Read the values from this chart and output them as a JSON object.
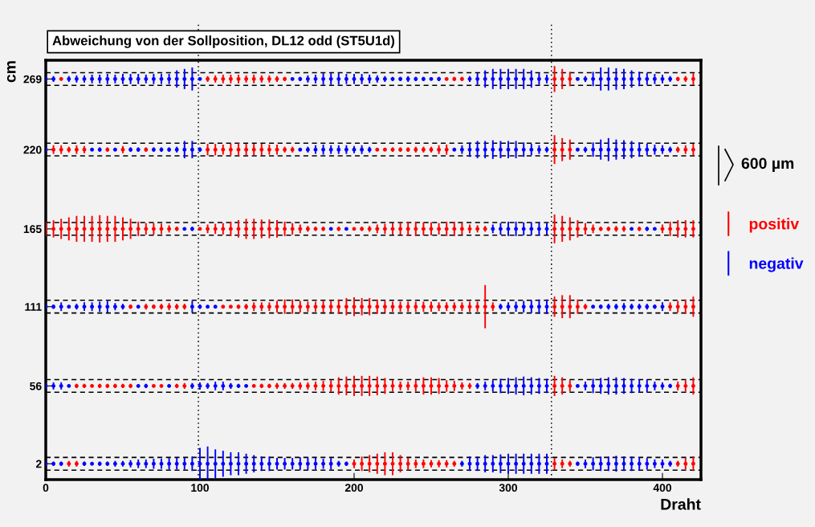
{
  "chart_data": {
    "type": "scatter",
    "title": "Abweichung von der Sollposition, DL12 odd (ST5U1d)",
    "xlabel": "Draht",
    "ylabel": "cm",
    "marker": "circle",
    "grid": false,
    "legend": "right",
    "annotations": [
      "600 µm"
    ],
    "xlim": [
      0,
      425
    ],
    "xticks": [
      0,
      100,
      200,
      300,
      400
    ],
    "ylim": [
      -9,
      282
    ],
    "yticks": [
      2,
      56,
      111,
      165,
      220,
      269
    ],
    "ref_lines": [
      {
        "axis": "x",
        "value": 99,
        "line_style": "dotted",
        "color": "#000000"
      },
      {
        "axis": "x",
        "value": 328,
        "line_style": "dotted",
        "color": "#000000"
      },
      {
        "axis": "y",
        "value": 273.4,
        "line_style": "dashed",
        "color": "#000000"
      },
      {
        "axis": "y",
        "value": 264.6,
        "line_style": "dashed",
        "color": "#000000"
      },
      {
        "axis": "y",
        "value": 224.4,
        "line_style": "dashed",
        "color": "#000000"
      },
      {
        "axis": "y",
        "value": 215.6,
        "line_style": "dashed",
        "color": "#000000"
      },
      {
        "axis": "y",
        "value": 169.4,
        "line_style": "dashed",
        "color": "#000000"
      },
      {
        "axis": "y",
        "value": 160.6,
        "line_style": "dashed",
        "color": "#000000"
      },
      {
        "axis": "y",
        "value": 115.4,
        "line_style": "dashed",
        "color": "#000000"
      },
      {
        "axis": "y",
        "value": 106.6,
        "line_style": "dashed",
        "color": "#000000"
      },
      {
        "axis": "y",
        "value": 60.4,
        "line_style": "dashed",
        "color": "#000000"
      },
      {
        "axis": "y",
        "value": 51.6,
        "line_style": "dashed",
        "color": "#000000"
      },
      {
        "axis": "y",
        "value": 6.4,
        "line_style": "dashed",
        "color": "#000000"
      },
      {
        "axis": "y",
        "value": -2.4,
        "line_style": "dashed",
        "color": "#000000"
      }
    ],
    "series": [
      {
        "name": "positiv",
        "color": "#ff0000",
        "x": [
          10,
          105,
          110,
          115,
          120,
          125,
          130,
          135,
          140,
          145,
          150,
          155,
          260,
          265,
          270,
          330,
          335,
          340,
          410,
          415,
          420
        ],
        "values": [
          269,
          269,
          269,
          269,
          269,
          269,
          269,
          269,
          269,
          269,
          269,
          269,
          269,
          269,
          269,
          269,
          269,
          269,
          269,
          269,
          269
        ],
        "errors": [
          1,
          2,
          2.5,
          3,
          3,
          3,
          2.5,
          3,
          2.5,
          2.5,
          2,
          1.5,
          1,
          1.5,
          1.5,
          9,
          7,
          5,
          1.5,
          2,
          4
        ]
      },
      {
        "name": "negativ",
        "color": "#0000ff",
        "x": [
          0,
          5,
          15,
          20,
          25,
          30,
          35,
          40,
          45,
          50,
          55,
          60,
          65,
          70,
          75,
          80,
          85,
          90,
          95,
          100,
          160,
          165,
          170,
          175,
          180,
          185,
          190,
          195,
          200,
          205,
          210,
          215,
          220,
          225,
          230,
          235,
          240,
          245,
          250,
          255,
          275,
          280,
          285,
          290,
          295,
          300,
          305,
          310,
          315,
          320,
          325,
          345,
          350,
          355,
          360,
          365,
          370,
          375,
          380,
          385,
          390,
          395,
          400,
          405
        ],
        "values": [
          269,
          269,
          269,
          269,
          269,
          269,
          269,
          269,
          269,
          269,
          269,
          269,
          269,
          269,
          269,
          269,
          269,
          269,
          269,
          269,
          269,
          269,
          269,
          269,
          269,
          269,
          269,
          269,
          269,
          269,
          269,
          269,
          269,
          269,
          269,
          269,
          269,
          269,
          269,
          269,
          269,
          269,
          269,
          269,
          269,
          269,
          269,
          269,
          269,
          269,
          269,
          269,
          269,
          269,
          269,
          269,
          269,
          269,
          269,
          269,
          269,
          269,
          269,
          269
        ],
        "errors": [
          1.5,
          2,
          2,
          2.5,
          2.5,
          3,
          3,
          3.5,
          3,
          3.5,
          3.5,
          3.5,
          3,
          3.5,
          3.5,
          3.5,
          6,
          7,
          8,
          1,
          1,
          1.5,
          2.5,
          3,
          4,
          4,
          4,
          3.5,
          3.5,
          3.5,
          3,
          2.5,
          2,
          1.5,
          1.5,
          2,
          1.5,
          1.5,
          1,
          1.5,
          2,
          4,
          6,
          7,
          7,
          7,
          7,
          7,
          6,
          4,
          3,
          1,
          2,
          5,
          8,
          8,
          7.5,
          7,
          6,
          5,
          4,
          3.5,
          3,
          2
        ]
      },
      {
        "color": "#ff0000",
        "x": [
          5,
          10,
          15,
          20,
          25,
          40,
          50,
          65,
          105,
          110,
          115,
          120,
          125,
          130,
          135,
          140,
          145,
          150,
          155,
          160,
          215,
          220,
          225,
          230,
          235,
          240,
          245,
          250,
          255,
          260,
          330,
          335,
          340,
          410,
          415,
          420
        ],
        "values": [
          220,
          220,
          220,
          220,
          220,
          220,
          220,
          220,
          220,
          220,
          220,
          220,
          220,
          220,
          220,
          220,
          220,
          220,
          220,
          220,
          220,
          220,
          220,
          220,
          220,
          220,
          220,
          220,
          220,
          220,
          220,
          220,
          220,
          220,
          220,
          220
        ],
        "errors": [
          3,
          3,
          2,
          3,
          2.5,
          1.5,
          2.5,
          1.5,
          4,
          4,
          3.5,
          4,
          4.5,
          4,
          4,
          4,
          3.5,
          3.5,
          2,
          2,
          1,
          1,
          1.5,
          1.5,
          1.5,
          2,
          2,
          2,
          3,
          3.5,
          10,
          8,
          7,
          2,
          3,
          4
        ]
      },
      {
        "color": "#0000ff",
        "x": [
          0,
          30,
          35,
          45,
          55,
          60,
          70,
          75,
          80,
          85,
          90,
          95,
          100,
          165,
          170,
          175,
          180,
          185,
          190,
          195,
          200,
          205,
          210,
          265,
          270,
          275,
          280,
          285,
          290,
          295,
          300,
          305,
          310,
          315,
          320,
          325,
          345,
          350,
          355,
          360,
          365,
          370,
          375,
          380,
          385,
          390,
          395,
          400,
          405
        ],
        "values": [
          220,
          220,
          220,
          220,
          220,
          220,
          220,
          220,
          220,
          220,
          220,
          220,
          220,
          220,
          220,
          220,
          220,
          220,
          220,
          220,
          220,
          220,
          220,
          220,
          220,
          220,
          220,
          220,
          220,
          220,
          220,
          220,
          220,
          220,
          220,
          220,
          220,
          220,
          220,
          220,
          220,
          220,
          220,
          220,
          220,
          220,
          220,
          220,
          220
        ],
        "errors": [
          1,
          1,
          1.5,
          1,
          1.5,
          1.5,
          1.5,
          1.5,
          1.5,
          2,
          6,
          6,
          1.5,
          1,
          2,
          3,
          3.5,
          3,
          3,
          3,
          2.5,
          3,
          2,
          1,
          3,
          5,
          6,
          6,
          6.5,
          6,
          6,
          6,
          5,
          4,
          3,
          2,
          1,
          2,
          5,
          7,
          8,
          7,
          6.5,
          6,
          5,
          4,
          3.5,
          3,
          2
        ]
      },
      {
        "color": "#ff0000",
        "x": [
          0,
          5,
          10,
          15,
          20,
          25,
          30,
          35,
          40,
          45,
          50,
          55,
          60,
          65,
          70,
          75,
          80,
          85,
          100,
          105,
          110,
          115,
          120,
          125,
          130,
          135,
          140,
          145,
          150,
          155,
          160,
          165,
          170,
          175,
          180,
          190,
          200,
          205,
          210,
          215,
          220,
          225,
          230,
          235,
          240,
          245,
          250,
          255,
          260,
          265,
          270,
          275,
          280,
          285,
          330,
          335,
          340,
          345,
          350,
          355,
          360,
          365,
          370,
          375,
          385,
          400,
          405,
          410,
          415,
          420
        ],
        "values": [
          165,
          165,
          165,
          165,
          165,
          165,
          165,
          165,
          165,
          165,
          165,
          165,
          165,
          165,
          165,
          165,
          165,
          165,
          165,
          165,
          165,
          165,
          165,
          165,
          165,
          165,
          165,
          165,
          165,
          165,
          165,
          165,
          165,
          165,
          165,
          165,
          165,
          165,
          165,
          165,
          165,
          165,
          165,
          165,
          165,
          165,
          165,
          165,
          165,
          165,
          165,
          165,
          165,
          165,
          165,
          165,
          165,
          165,
          165,
          165,
          165,
          165,
          165,
          165,
          165,
          165,
          165,
          165,
          165,
          165
        ],
        "errors": [
          5,
          6,
          7,
          8,
          9,
          9,
          9,
          9.5,
          9,
          9,
          8,
          7,
          5,
          4,
          4,
          3.5,
          2.5,
          1.5,
          1,
          3,
          3.5,
          4,
          5,
          6,
          7,
          7,
          6.5,
          6.5,
          6,
          5,
          4,
          3,
          2,
          1.5,
          1.5,
          1.5,
          1,
          1.5,
          2,
          3,
          3.5,
          4,
          4,
          5,
          5,
          4.5,
          4.5,
          4,
          5,
          5,
          4,
          3,
          2.5,
          2,
          10,
          9,
          8,
          6,
          4,
          3,
          1.5,
          1.5,
          2,
          2,
          1.5,
          3,
          5,
          6,
          6,
          6
        ]
      },
      {
        "color": "#0000ff",
        "x": [
          90,
          95,
          185,
          195,
          290,
          295,
          300,
          305,
          310,
          315,
          320,
          325,
          380,
          390,
          395
        ],
        "values": [
          165,
          165,
          165,
          165,
          165,
          165,
          165,
          165,
          165,
          165,
          165,
          165,
          165,
          165,
          165
        ],
        "errors": [
          1,
          1.5,
          1,
          1,
          3,
          4,
          5,
          5,
          4.5,
          4.5,
          4.5,
          4,
          1,
          1.5,
          1
        ]
      },
      {
        "color": "#ff0000",
        "x": [
          55,
          65,
          70,
          75,
          80,
          85,
          90,
          115,
          120,
          125,
          130,
          135,
          140,
          145,
          150,
          155,
          160,
          165,
          170,
          175,
          180,
          185,
          190,
          195,
          200,
          205,
          210,
          215,
          220,
          225,
          230,
          235,
          240,
          245,
          250,
          255,
          260,
          265,
          270,
          275,
          280,
          285,
          290,
          330,
          335,
          340,
          345,
          350,
          405,
          410,
          415,
          420
        ],
        "values": [
          111,
          111,
          111,
          111,
          111,
          111,
          111,
          111,
          111,
          111,
          111,
          111,
          111,
          111,
          111,
          111,
          111,
          111,
          111,
          111,
          111,
          111,
          111,
          111,
          111,
          111,
          111,
          111,
          111,
          111,
          111,
          111,
          111,
          111,
          111,
          111,
          111,
          111,
          111,
          111,
          111,
          111,
          111,
          111,
          111,
          111,
          111,
          111,
          111,
          111,
          111,
          111
        ],
        "errors": [
          1.5,
          2,
          1.5,
          2,
          2.5,
          2,
          2,
          1,
          1,
          1.5,
          2,
          3,
          3,
          3,
          4,
          5,
          5,
          4,
          3.5,
          3.5,
          4,
          4,
          5,
          6,
          6.5,
          6,
          6,
          5,
          4,
          3.5,
          3.5,
          3.5,
          3.5,
          3.5,
          3.5,
          3,
          3,
          3,
          3,
          3.5,
          3.5,
          15,
          3,
          7,
          8,
          8,
          5,
          2,
          3,
          4,
          5,
          7
        ]
      },
      {
        "color": "#0000ff",
        "x": [
          0,
          5,
          10,
          15,
          20,
          25,
          30,
          35,
          40,
          45,
          50,
          60,
          95,
          100,
          105,
          110,
          295,
          300,
          305,
          310,
          315,
          320,
          325,
          355,
          360,
          365,
          370,
          375,
          380,
          385,
          390,
          395,
          400
        ],
        "values": [
          111,
          111,
          111,
          111,
          111,
          111,
          111,
          111,
          111,
          111,
          111,
          111,
          111,
          111,
          111,
          111,
          111,
          111,
          111,
          111,
          111,
          111,
          111,
          111,
          111,
          111,
          111,
          111,
          111,
          111,
          111,
          111,
          111
        ],
        "errors": [
          1,
          1.5,
          3,
          1,
          2,
          3,
          3,
          3.5,
          4,
          2.5,
          2,
          1,
          4,
          1.5,
          1,
          1,
          2,
          3,
          3.5,
          4,
          4.5,
          5,
          5,
          1,
          1.5,
          2,
          2,
          2.5,
          2,
          2,
          2,
          1.5,
          3
        ]
      },
      {
        "color": "#ff0000",
        "x": [
          20,
          25,
          30,
          35,
          40,
          45,
          50,
          55,
          70,
          75,
          85,
          90,
          135,
          140,
          145,
          150,
          155,
          160,
          165,
          170,
          175,
          180,
          185,
          190,
          195,
          200,
          205,
          210,
          215,
          220,
          225,
          230,
          235,
          240,
          245,
          250,
          255,
          260,
          265,
          270,
          275,
          330,
          335,
          340,
          410,
          415,
          420
        ],
        "values": [
          56,
          56,
          56,
          56,
          56,
          56,
          56,
          56,
          56,
          56,
          56,
          56,
          56,
          56,
          56,
          56,
          56,
          56,
          56,
          56,
          56,
          56,
          56,
          56,
          56,
          56,
          56,
          56,
          56,
          56,
          56,
          56,
          56,
          56,
          56,
          56,
          56,
          56,
          56,
          56,
          56,
          56,
          56,
          56,
          56,
          56,
          56
        ],
        "errors": [
          1.5,
          1.5,
          1,
          1.5,
          1.5,
          1.5,
          1.5,
          1.5,
          1,
          1,
          1.5,
          2,
          1,
          1.5,
          1.5,
          2,
          2,
          2,
          2.5,
          2.5,
          3,
          3.5,
          4,
          6,
          6.5,
          7,
          7,
          7,
          6.5,
          5.5,
          4,
          3,
          3,
          4,
          6,
          6,
          5.5,
          4,
          3.5,
          2.5,
          2,
          7,
          6,
          4,
          3,
          4,
          6
        ]
      },
      {
        "color": "#0000ff",
        "x": [
          0,
          5,
          10,
          15,
          60,
          65,
          80,
          95,
          100,
          105,
          110,
          115,
          120,
          125,
          130,
          280,
          285,
          290,
          295,
          300,
          305,
          310,
          315,
          320,
          325,
          345,
          350,
          355,
          360,
          365,
          370,
          375,
          380,
          385,
          390,
          395,
          400,
          405
        ],
        "values": [
          56,
          56,
          56,
          56,
          56,
          56,
          56,
          56,
          56,
          56,
          56,
          56,
          56,
          56,
          56,
          56,
          56,
          56,
          56,
          56,
          56,
          56,
          56,
          56,
          56,
          56,
          56,
          56,
          56,
          56,
          56,
          56,
          56,
          56,
          56,
          56,
          56,
          56
        ],
        "errors": [
          2,
          2.5,
          2.5,
          1,
          1,
          1.5,
          1,
          2,
          2.5,
          2,
          3,
          3,
          2,
          1.5,
          1,
          2,
          3,
          4,
          5,
          5.5,
          6,
          6.5,
          6,
          5.5,
          5,
          1,
          3,
          5,
          5.5,
          6,
          6,
          5.5,
          5,
          4.5,
          4.5,
          3,
          2.5,
          1.5
        ]
      },
      {
        "color": "#ff0000",
        "x": [
          15,
          20,
          200,
          205,
          210,
          215,
          220,
          225,
          230,
          235,
          240,
          245,
          250,
          255,
          260,
          265,
          330,
          335,
          340,
          410,
          415,
          420
        ],
        "values": [
          2,
          2,
          2,
          2,
          2,
          2,
          2,
          2,
          2,
          2,
          2,
          2,
          2,
          2,
          2,
          2,
          2,
          2,
          2,
          2,
          2,
          2
        ],
        "errors": [
          2,
          2,
          3,
          5,
          6,
          7,
          8,
          8,
          6,
          4,
          3,
          3,
          2.5,
          2.5,
          2.5,
          2,
          4,
          3,
          2,
          2,
          4,
          5
        ]
      },
      {
        "color": "#0000ff",
        "x": [
          0,
          5,
          10,
          25,
          30,
          35,
          40,
          45,
          50,
          55,
          60,
          65,
          70,
          75,
          80,
          85,
          90,
          95,
          100,
          105,
          110,
          115,
          120,
          125,
          130,
          135,
          140,
          145,
          150,
          155,
          160,
          165,
          170,
          175,
          180,
          185,
          190,
          195,
          270,
          275,
          280,
          285,
          290,
          295,
          300,
          305,
          310,
          315,
          320,
          325,
          345,
          350,
          355,
          360,
          365,
          370,
          375,
          380,
          385,
          390,
          395,
          400,
          405
        ],
        "values": [
          2,
          2,
          2,
          2,
          2,
          2,
          2,
          2,
          2,
          2,
          2,
          2,
          2,
          2,
          2,
          2,
          2,
          2,
          2,
          2,
          2,
          2,
          2,
          2,
          2,
          2,
          2,
          2,
          2,
          2,
          2,
          2,
          2,
          2,
          2,
          2,
          2,
          2,
          2,
          2,
          2,
          2,
          2,
          2,
          2,
          2,
          2,
          2,
          2,
          2,
          2,
          2,
          2,
          2,
          2,
          2,
          2,
          2,
          2,
          2,
          2,
          2,
          2
        ],
        "errors": [
          1.5,
          1.5,
          1.5,
          1.5,
          1,
          1.5,
          1.5,
          2,
          2,
          2.5,
          3,
          3,
          3.5,
          3.5,
          4,
          4,
          4,
          5,
          11,
          12,
          10,
          9,
          8,
          8,
          7,
          6,
          5,
          5,
          4,
          4,
          4,
          4.5,
          4.5,
          4,
          3.5,
          4,
          2,
          1.5,
          2,
          5,
          5,
          6,
          6,
          6.5,
          7,
          7,
          7,
          7,
          7,
          7,
          1.5,
          3,
          4.5,
          5,
          5,
          5.5,
          5,
          5,
          4.5,
          4,
          3,
          3,
          2
        ]
      }
    ]
  }
}
